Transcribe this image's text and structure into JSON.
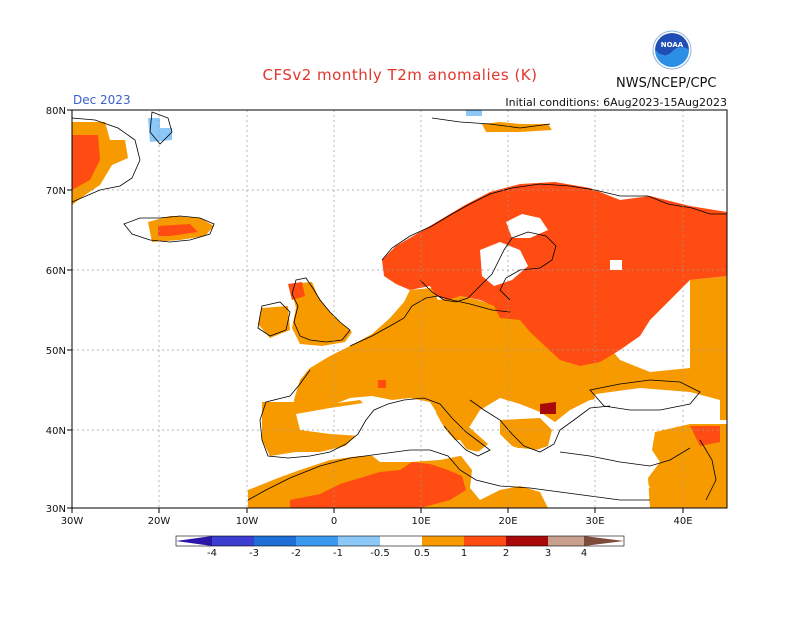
{
  "header": {
    "title": "CFSv2 monthly T2m anomalies (K)",
    "source": "NWS/NCEP/CPC",
    "month": "Dec 2023",
    "initial_conditions": "Initial conditions: 6Aug2023-15Aug2023",
    "logo_text": "NOAA"
  },
  "map": {
    "lat_labels": [
      "80N",
      "70N",
      "60N",
      "50N",
      "40N",
      "30N"
    ],
    "lon_labels": [
      "30W",
      "20W",
      "10W",
      "0",
      "10E",
      "20E",
      "30E",
      "40E"
    ]
  },
  "colorbar": {
    "ticks": [
      "-4",
      "-3",
      "-2",
      "-1",
      "-0.5",
      "0.5",
      "1",
      "2",
      "3",
      "4"
    ],
    "colors": [
      "#2a17a8",
      "#3b3ed0",
      "#1f6fd6",
      "#3c99f0",
      "#8cc8f7",
      "#ffffff",
      "#f79a00",
      "#ff4c12",
      "#a80a0a",
      "#c9a08e",
      "#7e4a3a"
    ]
  },
  "palette": {
    "orange": "#f79a00",
    "red": "#ff4c12",
    "darkred": "#a80a0a",
    "lightblue": "#8cc8f7"
  }
}
